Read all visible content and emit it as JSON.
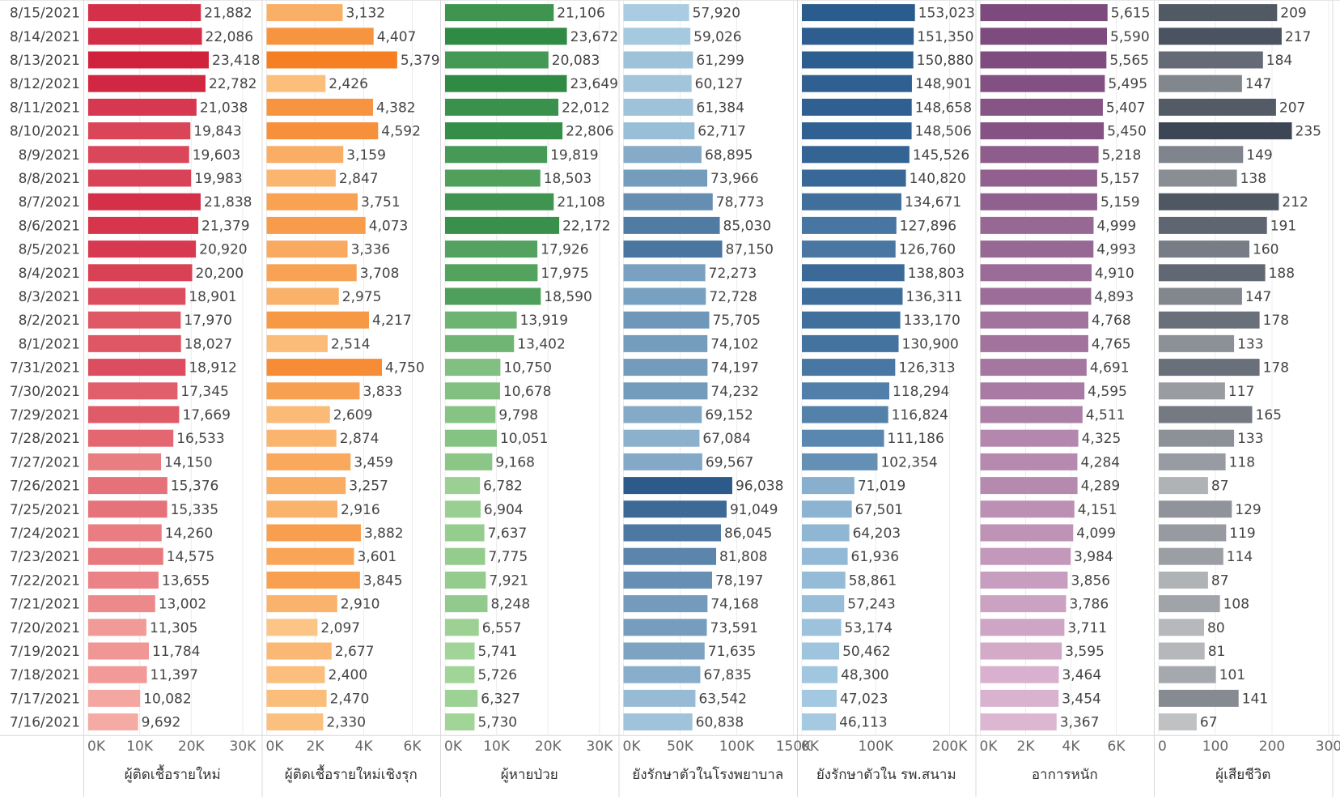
{
  "chart_data": {
    "type": "bar",
    "orientation": "horizontal",
    "categories": [
      "8/15/2021",
      "8/14/2021",
      "8/13/2021",
      "8/12/2021",
      "8/11/2021",
      "8/10/2021",
      "8/9/2021",
      "8/8/2021",
      "8/7/2021",
      "8/6/2021",
      "8/5/2021",
      "8/4/2021",
      "8/3/2021",
      "8/2/2021",
      "8/1/2021",
      "7/31/2021",
      "7/30/2021",
      "7/29/2021",
      "7/28/2021",
      "7/27/2021",
      "7/26/2021",
      "7/25/2021",
      "7/24/2021",
      "7/23/2021",
      "7/22/2021",
      "7/21/2021",
      "7/20/2021",
      "7/19/2021",
      "7/18/2021",
      "7/17/2021",
      "7/16/2021"
    ],
    "series": [
      {
        "name": "ผู้ติดเชื้อรายใหม่",
        "color": "#d0213d",
        "light_color": "#fcc3b6",
        "xlim": [
          0,
          33000
        ],
        "ticks": [
          0,
          10000,
          20000,
          30000
        ],
        "tick_labels": [
          "0K",
          "10K",
          "20K",
          "30K"
        ],
        "values": [
          21882,
          22086,
          23418,
          22782,
          21038,
          19843,
          19603,
          19983,
          21838,
          21379,
          20920,
          20200,
          18901,
          17970,
          18027,
          18912,
          17345,
          17669,
          16533,
          14150,
          15376,
          15335,
          14260,
          14575,
          13655,
          13002,
          11305,
          11784,
          11397,
          10082,
          9692
        ]
      },
      {
        "name": "ผู้ติดเชื้อรายใหม่เชิงรุก",
        "color": "#f57f22",
        "light_color": "#fdd197",
        "xlim": [
          0,
          7000
        ],
        "ticks": [
          0,
          2000,
          4000,
          6000
        ],
        "tick_labels": [
          "0K",
          "2K",
          "4K",
          "6K"
        ],
        "values": [
          3132,
          4407,
          5379,
          2426,
          4382,
          4592,
          3159,
          2847,
          3751,
          4073,
          3336,
          3708,
          2975,
          4217,
          2514,
          4750,
          3833,
          2609,
          2874,
          3459,
          3257,
          2916,
          3882,
          3601,
          3845,
          2910,
          2097,
          2677,
          2400,
          2470,
          2330
        ]
      },
      {
        "name": "ผู้หายป่วย",
        "color": "#2f8a44",
        "light_color": "#b5e2a6",
        "xlim": [
          0,
          33000
        ],
        "ticks": [
          0,
          10000,
          20000,
          30000
        ],
        "tick_labels": [
          "0K",
          "10K",
          "20K",
          "30K"
        ],
        "values": [
          21106,
          23672,
          20083,
          23649,
          22012,
          22806,
          19819,
          18503,
          21108,
          22172,
          17926,
          17975,
          18590,
          13919,
          13402,
          10750,
          10678,
          9798,
          10051,
          9168,
          6782,
          6904,
          7637,
          7775,
          7921,
          8248,
          6557,
          5741,
          5726,
          6327,
          5730
        ]
      },
      {
        "name": "ยังรักษาตัวในโรงพยาบาล",
        "color": "#2c5a8a",
        "light_color": "#bfe0f1",
        "xlim": [
          0,
          150000
        ],
        "ticks": [
          0,
          50000,
          100000,
          150000
        ],
        "tick_labels": [
          "0K",
          "50K",
          "100K",
          "150K"
        ],
        "values": [
          57920,
          59026,
          61299,
          60127,
          61384,
          62717,
          68895,
          73966,
          78773,
          85030,
          87150,
          72273,
          72728,
          75705,
          74102,
          74197,
          74232,
          69152,
          67084,
          69567,
          96038,
          91049,
          86045,
          81808,
          78197,
          74168,
          73591,
          71635,
          67835,
          63542,
          60838
        ]
      },
      {
        "name": "ยังรักษาตัวใน รพ.สนาม",
        "color": "#2b5c8e",
        "light_color": "#b9dcf0",
        "xlim": [
          0,
          230000
        ],
        "ticks": [
          0,
          100000,
          200000
        ],
        "tick_labels": [
          "0K",
          "100K",
          "200K"
        ],
        "values": [
          153023,
          151350,
          150880,
          148901,
          148658,
          148506,
          145526,
          140820,
          134671,
          127896,
          126760,
          138803,
          136311,
          133170,
          130900,
          126313,
          118294,
          116824,
          111186,
          102354,
          71019,
          67501,
          64203,
          61936,
          58861,
          57243,
          53174,
          50462,
          48300,
          47023,
          46113
        ]
      },
      {
        "name": "อาการหนัก",
        "color": "#7d4a7d",
        "light_color": "#eec9e1",
        "xlim": [
          0,
          7500
        ],
        "ticks": [
          0,
          2000,
          4000,
          6000
        ],
        "tick_labels": [
          "0K",
          "2K",
          "4K",
          "6K"
        ],
        "values": [
          5615,
          5590,
          5565,
          5495,
          5407,
          5450,
          5218,
          5157,
          5159,
          4999,
          4993,
          4910,
          4893,
          4768,
          4765,
          4691,
          4595,
          4511,
          4325,
          4284,
          4289,
          4151,
          4099,
          3984,
          3856,
          3786,
          3711,
          3595,
          3464,
          3454,
          3367
        ]
      },
      {
        "name": "ผู้เสียชีวิต",
        "color": "#3d4654",
        "light_color": "#d7d7d7",
        "xlim": [
          0,
          300
        ],
        "ticks": [
          0,
          100,
          200,
          300
        ],
        "tick_labels": [
          "0",
          "100",
          "200",
          "300"
        ],
        "values": [
          209,
          217,
          184,
          147,
          207,
          235,
          149,
          138,
          212,
          191,
          160,
          188,
          147,
          178,
          133,
          178,
          117,
          165,
          133,
          118,
          87,
          129,
          119,
          114,
          87,
          108,
          80,
          81,
          101,
          141,
          67
        ]
      }
    ]
  }
}
